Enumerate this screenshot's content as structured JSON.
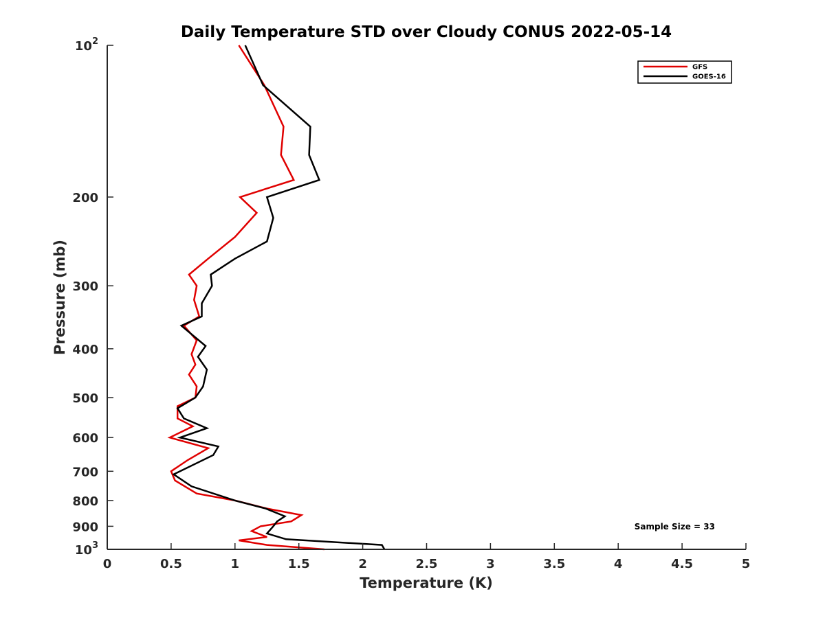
{
  "chart_data": {
    "type": "line",
    "title": "Daily Temperature STD over Cloudy CONUS 2022-05-14",
    "xlabel": "Temperature (K)",
    "ylabel": "Pressure (mb)",
    "xlim": [
      0,
      5
    ],
    "ylim": [
      100,
      1000
    ],
    "y_scale": "log",
    "y_reversed": true,
    "grid": false,
    "legend_position": "top-right",
    "x_ticks": [
      {
        "value": 0,
        "label": "0"
      },
      {
        "value": 0.5,
        "label": "0.5"
      },
      {
        "value": 1,
        "label": "1"
      },
      {
        "value": 1.5,
        "label": "1.5"
      },
      {
        "value": 2,
        "label": "2"
      },
      {
        "value": 2.5,
        "label": "2.5"
      },
      {
        "value": 3,
        "label": "3"
      },
      {
        "value": 3.5,
        "label": "3.5"
      },
      {
        "value": 4,
        "label": "4"
      },
      {
        "value": 4.5,
        "label": "4.5"
      },
      {
        "value": 5,
        "label": "5"
      }
    ],
    "y_ticks": [
      {
        "value": 100,
        "label": "10",
        "exponent": "2"
      },
      {
        "value": 200,
        "label": "200"
      },
      {
        "value": 300,
        "label": "300"
      },
      {
        "value": 400,
        "label": "400"
      },
      {
        "value": 500,
        "label": "500"
      },
      {
        "value": 600,
        "label": "600"
      },
      {
        "value": 700,
        "label": "700"
      },
      {
        "value": 800,
        "label": "800"
      },
      {
        "value": 900,
        "label": "900"
      },
      {
        "value": 1000,
        "label": "10",
        "exponent": "3"
      }
    ],
    "series": [
      {
        "name": "GFS",
        "color": "#e00000",
        "points": [
          {
            "x": 1.03,
            "p": 100
          },
          {
            "x": 1.23,
            "p": 120
          },
          {
            "x": 1.38,
            "p": 145
          },
          {
            "x": 1.36,
            "p": 165
          },
          {
            "x": 1.46,
            "p": 185
          },
          {
            "x": 1.04,
            "p": 200
          },
          {
            "x": 1.17,
            "p": 215
          },
          {
            "x": 1.0,
            "p": 240
          },
          {
            "x": 0.79,
            "p": 265
          },
          {
            "x": 0.64,
            "p": 285
          },
          {
            "x": 0.7,
            "p": 300
          },
          {
            "x": 0.68,
            "p": 320
          },
          {
            "x": 0.72,
            "p": 345
          },
          {
            "x": 0.6,
            "p": 360
          },
          {
            "x": 0.7,
            "p": 385
          },
          {
            "x": 0.66,
            "p": 410
          },
          {
            "x": 0.69,
            "p": 430
          },
          {
            "x": 0.64,
            "p": 450
          },
          {
            "x": 0.7,
            "p": 475
          },
          {
            "x": 0.69,
            "p": 500
          },
          {
            "x": 0.55,
            "p": 520
          },
          {
            "x": 0.55,
            "p": 550
          },
          {
            "x": 0.67,
            "p": 570
          },
          {
            "x": 0.49,
            "p": 600
          },
          {
            "x": 0.79,
            "p": 630
          },
          {
            "x": 0.63,
            "p": 665
          },
          {
            "x": 0.5,
            "p": 700
          },
          {
            "x": 0.53,
            "p": 730
          },
          {
            "x": 0.7,
            "p": 775
          },
          {
            "x": 1.0,
            "p": 800
          },
          {
            "x": 1.25,
            "p": 830
          },
          {
            "x": 1.52,
            "p": 855
          },
          {
            "x": 1.44,
            "p": 880
          },
          {
            "x": 1.2,
            "p": 900
          },
          {
            "x": 1.13,
            "p": 920
          },
          {
            "x": 1.25,
            "p": 945
          },
          {
            "x": 1.03,
            "p": 960
          },
          {
            "x": 1.25,
            "p": 980
          },
          {
            "x": 1.7,
            "p": 1000
          }
        ]
      },
      {
        "name": "GOES-16",
        "color": "#000000",
        "points": [
          {
            "x": 1.08,
            "p": 100
          },
          {
            "x": 1.22,
            "p": 120
          },
          {
            "x": 1.59,
            "p": 145
          },
          {
            "x": 1.58,
            "p": 165
          },
          {
            "x": 1.66,
            "p": 185
          },
          {
            "x": 1.25,
            "p": 200
          },
          {
            "x": 1.3,
            "p": 220
          },
          {
            "x": 1.25,
            "p": 245
          },
          {
            "x": 1.0,
            "p": 265
          },
          {
            "x": 0.81,
            "p": 285
          },
          {
            "x": 0.82,
            "p": 300
          },
          {
            "x": 0.74,
            "p": 325
          },
          {
            "x": 0.74,
            "p": 345
          },
          {
            "x": 0.58,
            "p": 360
          },
          {
            "x": 0.77,
            "p": 395
          },
          {
            "x": 0.71,
            "p": 415
          },
          {
            "x": 0.78,
            "p": 440
          },
          {
            "x": 0.75,
            "p": 475
          },
          {
            "x": 0.69,
            "p": 500
          },
          {
            "x": 0.55,
            "p": 525
          },
          {
            "x": 0.6,
            "p": 550
          },
          {
            "x": 0.78,
            "p": 575
          },
          {
            "x": 0.57,
            "p": 600
          },
          {
            "x": 0.87,
            "p": 625
          },
          {
            "x": 0.83,
            "p": 650
          },
          {
            "x": 0.52,
            "p": 710
          },
          {
            "x": 0.66,
            "p": 750
          },
          {
            "x": 1.0,
            "p": 800
          },
          {
            "x": 1.24,
            "p": 830
          },
          {
            "x": 1.39,
            "p": 860
          },
          {
            "x": 1.33,
            "p": 880
          },
          {
            "x": 1.3,
            "p": 900
          },
          {
            "x": 1.25,
            "p": 930
          },
          {
            "x": 1.4,
            "p": 955
          },
          {
            "x": 2.15,
            "p": 980
          },
          {
            "x": 2.17,
            "p": 1000
          }
        ]
      }
    ],
    "annotations": [
      {
        "text": "Sample Size = 33"
      }
    ]
  }
}
